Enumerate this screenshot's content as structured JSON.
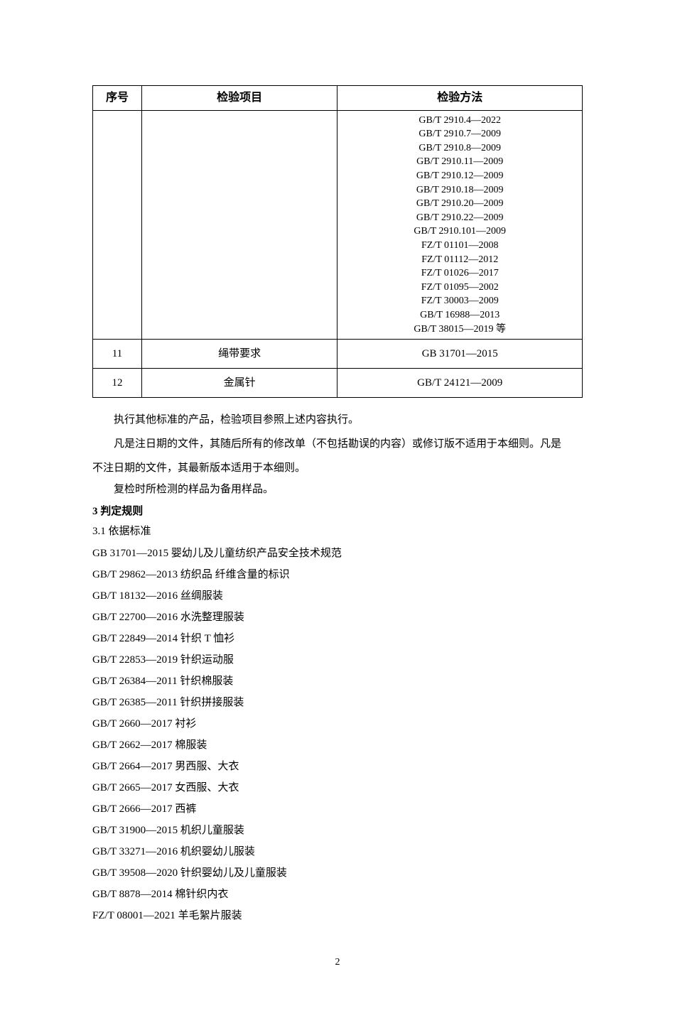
{
  "table": {
    "headers": {
      "seq": "序号",
      "item": "检验项目",
      "method": "检验方法"
    },
    "row_methods": [
      "GB/T 2910.4—2022",
      "GB/T 2910.7—2009",
      "GB/T 2910.8—2009",
      "GB/T 2910.11—2009",
      "GB/T 2910.12—2009",
      "GB/T 2910.18—2009",
      "GB/T 2910.20—2009",
      "GB/T 2910.22—2009",
      "GB/T 2910.101—2009",
      "FZ/T 01101—2008",
      "FZ/T 01112—2012",
      "FZ/T 01026—2017",
      "FZ/T 01095—2002",
      "FZ/T 30003—2009",
      "GB/T 16988—2013",
      "GB/T 38015—2019 等"
    ],
    "row11": {
      "seq": "11",
      "item": "绳带要求",
      "method": "GB 31701—2015"
    },
    "row12": {
      "seq": "12",
      "item": "金属针",
      "method": "GB/T 24121—2009"
    }
  },
  "paragraphs": {
    "p1": "执行其他标准的产品，检验项目参照上述内容执行。",
    "p2": "凡是注日期的文件，其随后所有的修改单（不包括勘误的内容）或修订版不适用于本细则。凡是",
    "p2b": "不注日期的文件，其最新版本适用于本细则。",
    "p3": "复检时所检测的样品为备用样品。"
  },
  "section3": {
    "heading": "3 判定规则",
    "sub": "3.1 依据标准",
    "standards": [
      "GB 31701—2015 婴幼儿及儿童纺织产品安全技术规范",
      "GB/T 29862—2013 纺织品 纤维含量的标识",
      "GB/T 18132—2016 丝绸服装",
      "GB/T 22700—2016 水洗整理服装",
      "GB/T 22849—2014 针织 T 恤衫",
      "GB/T 22853—2019 针织运动服",
      "GB/T 26384—2011 针织棉服装",
      "GB/T 26385—2011 针织拼接服装",
      "GB/T 2660—2017 衬衫",
      "GB/T 2662—2017 棉服装",
      "GB/T 2664—2017 男西服、大衣",
      "GB/T 2665—2017 女西服、大衣",
      "GB/T 2666—2017 西裤",
      "GB/T 31900—2015 机织儿童服装",
      "GB/T 33271—2016 机织婴幼儿服装",
      "GB/T 39508—2020 针织婴幼儿及儿童服装",
      "GB/T 8878—2014 棉针织内衣",
      "FZ/T 08001—2021 羊毛絮片服装"
    ]
  },
  "page_number": "2"
}
